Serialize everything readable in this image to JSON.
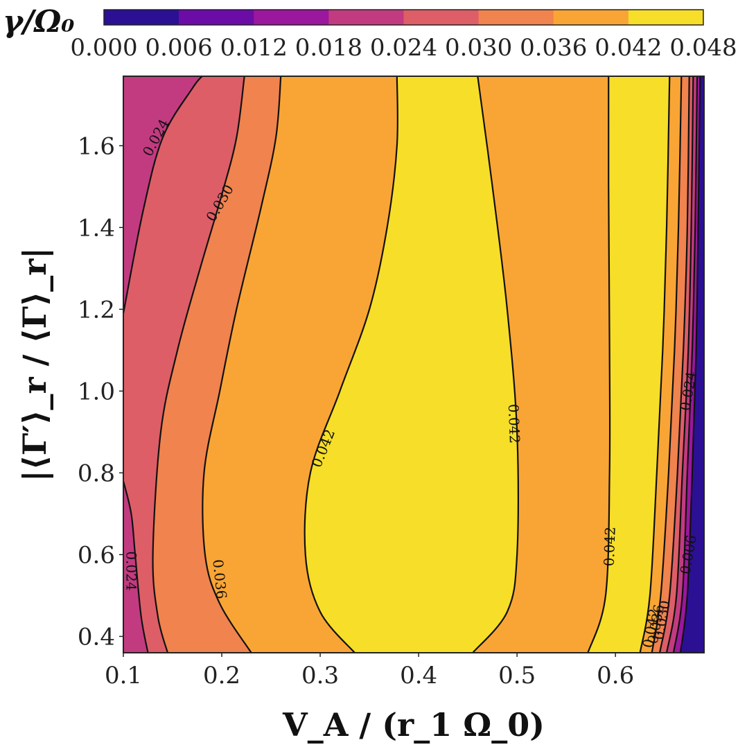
{
  "chart_data": {
    "type": "heatmap",
    "subtype": "filled-contour",
    "xlabel": "V_A / (r_1 Ω_0)",
    "ylabel": "|⟨Γ′⟩_r / ⟨Γ⟩_r|",
    "xlim": [
      0.1,
      0.69
    ],
    "ylim": [
      0.36,
      1.77
    ],
    "xticks": [
      0.1,
      0.2,
      0.3,
      0.4,
      0.5,
      0.6
    ],
    "yticks": [
      0.4,
      0.6,
      0.8,
      1.0,
      1.2,
      1.4,
      1.6
    ],
    "colorbar": {
      "label": "γ/Ω₀",
      "placement": "top",
      "levels": [
        0.0,
        0.006,
        0.012,
        0.018,
        0.024,
        0.03,
        0.036,
        0.042,
        0.048
      ],
      "tick_labels": [
        "0.000",
        "0.006",
        "0.012",
        "0.018",
        "0.024",
        "0.030",
        "0.036",
        "0.042",
        "0.048"
      ],
      "colors": [
        "#2c1094",
        "#6c0ca6",
        "#9b179e",
        "#c23b80",
        "#dd5e67",
        "#f0834e",
        "#f9a535",
        "#f7de28"
      ]
    },
    "contour_labels": [
      {
        "text": "0.024",
        "x": 0.133,
        "y": 1.62
      },
      {
        "text": "0.030",
        "x": 0.198,
        "y": 1.46
      },
      {
        "text": "0.042",
        "x": 0.303,
        "y": 0.86
      },
      {
        "text": "0.042",
        "x": 0.497,
        "y": 0.92
      },
      {
        "text": "0.042",
        "x": 0.594,
        "y": 0.62
      },
      {
        "text": "0.024",
        "x": 0.108,
        "y": 0.56
      },
      {
        "text": "0.036",
        "x": 0.198,
        "y": 0.54
      },
      {
        "text": "0.024",
        "x": 0.674,
        "y": 1.0
      },
      {
        "text": "0.006",
        "x": 0.674,
        "y": 0.6
      },
      {
        "text": "0.042",
        "x": 0.636,
        "y": 0.42
      },
      {
        "text": "0.036",
        "x": 0.641,
        "y": 0.43
      },
      {
        "text": "0.030",
        "x": 0.647,
        "y": 0.44
      }
    ],
    "contours": [
      {
        "level": 0.024,
        "points": [
          [
            0.1,
            1.19
          ],
          [
            0.12,
            1.44
          ],
          [
            0.14,
            1.62
          ],
          [
            0.17,
            1.74
          ],
          [
            0.18,
            1.77
          ]
        ]
      },
      {
        "level": 0.03,
        "points": [
          [
            0.145,
            0.36
          ],
          [
            0.135,
            0.45
          ],
          [
            0.13,
            0.6
          ],
          [
            0.138,
            0.9
          ],
          [
            0.155,
            1.1
          ],
          [
            0.178,
            1.3
          ],
          [
            0.2,
            1.48
          ],
          [
            0.215,
            1.62
          ],
          [
            0.223,
            1.77
          ]
        ]
      },
      {
        "level": 0.036,
        "points": [
          [
            0.23,
            0.36
          ],
          [
            0.198,
            0.48
          ],
          [
            0.183,
            0.6
          ],
          [
            0.182,
            0.8
          ],
          [
            0.198,
            1.0
          ],
          [
            0.215,
            1.2
          ],
          [
            0.24,
            1.45
          ],
          [
            0.255,
            1.62
          ],
          [
            0.26,
            1.77
          ]
        ]
      },
      {
        "level": 0.042,
        "points": [
          [
            0.335,
            0.36
          ],
          [
            0.3,
            0.46
          ],
          [
            0.285,
            0.6
          ],
          [
            0.29,
            0.8
          ],
          [
            0.32,
            1.0
          ],
          [
            0.35,
            1.2
          ],
          [
            0.368,
            1.4
          ],
          [
            0.378,
            1.6
          ],
          [
            0.378,
            1.77
          ]
        ]
      },
      {
        "level": 0.042,
        "points": [
          [
            0.455,
            0.36
          ],
          [
            0.49,
            0.46
          ],
          [
            0.5,
            0.6
          ],
          [
            0.5,
            0.9
          ],
          [
            0.49,
            1.2
          ],
          [
            0.475,
            1.5
          ],
          [
            0.46,
            1.77
          ]
        ]
      },
      {
        "level": 0.042,
        "points": [
          [
            0.572,
            0.36
          ],
          [
            0.59,
            0.5
          ],
          [
            0.594,
            0.8
          ],
          [
            0.594,
            1.1
          ],
          [
            0.593,
            1.5
          ],
          [
            0.593,
            1.77
          ]
        ]
      },
      {
        "level": 0.036,
        "points": [
          [
            0.625,
            0.36
          ],
          [
            0.635,
            0.5
          ],
          [
            0.642,
            0.8
          ],
          [
            0.648,
            1.1
          ],
          [
            0.652,
            1.4
          ],
          [
            0.655,
            1.77
          ]
        ]
      },
      {
        "level": 0.03,
        "points": [
          [
            0.637,
            0.36
          ],
          [
            0.646,
            0.5
          ],
          [
            0.654,
            0.8
          ],
          [
            0.66,
            1.1
          ],
          [
            0.664,
            1.4
          ],
          [
            0.667,
            1.77
          ]
        ]
      },
      {
        "level": 0.024,
        "points": [
          [
            0.645,
            0.36
          ],
          [
            0.655,
            0.5
          ],
          [
            0.663,
            0.8
          ],
          [
            0.669,
            1.1
          ],
          [
            0.673,
            1.4
          ],
          [
            0.675,
            1.77
          ]
        ]
      },
      {
        "level": 0.018,
        "points": [
          [
            0.652,
            0.36
          ],
          [
            0.662,
            0.5
          ],
          [
            0.668,
            0.8
          ],
          [
            0.674,
            1.1
          ],
          [
            0.677,
            1.4
          ],
          [
            0.679,
            1.77
          ]
        ]
      },
      {
        "level": 0.012,
        "points": [
          [
            0.659,
            0.36
          ],
          [
            0.668,
            0.5
          ],
          [
            0.673,
            0.8
          ],
          [
            0.678,
            1.1
          ],
          [
            0.681,
            1.4
          ],
          [
            0.683,
            1.77
          ]
        ]
      },
      {
        "level": 0.006,
        "points": [
          [
            0.666,
            0.36
          ],
          [
            0.673,
            0.5
          ],
          [
            0.678,
            0.8
          ],
          [
            0.682,
            1.1
          ],
          [
            0.684,
            1.4
          ],
          [
            0.686,
            1.77
          ]
        ]
      }
    ]
  }
}
